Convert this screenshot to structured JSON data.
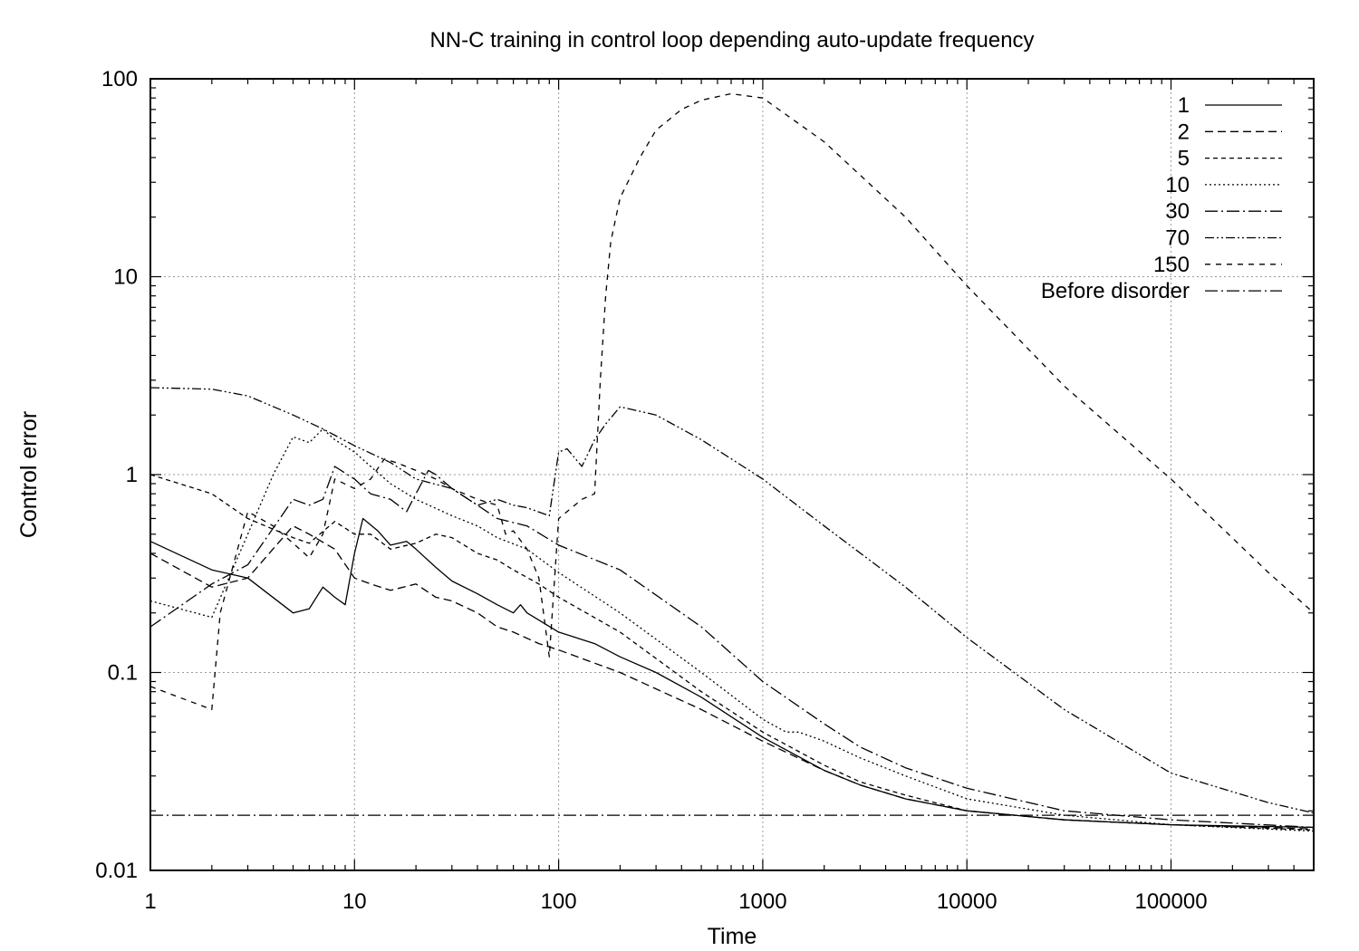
{
  "chart_data": {
    "type": "line",
    "title": "NN-C training in control loop depending auto-update frequency",
    "xlabel": "Time",
    "ylabel": "Control error",
    "xscale": "log",
    "yscale": "log",
    "xlim": [
      1,
      500000
    ],
    "ylim": [
      0.01,
      100
    ],
    "grid": true,
    "legend_position": "top-right",
    "x_ticks": [
      {
        "value": 1,
        "label": "1"
      },
      {
        "value": 10,
        "label": "10"
      },
      {
        "value": 100,
        "label": "100"
      },
      {
        "value": 1000,
        "label": "1000"
      },
      {
        "value": 10000,
        "label": "10000"
      },
      {
        "value": 100000,
        "label": "100000"
      }
    ],
    "y_ticks": [
      {
        "value": 0.01,
        "label": "0.01"
      },
      {
        "value": 0.1,
        "label": "0.1"
      },
      {
        "value": 1,
        "label": "1"
      },
      {
        "value": 10,
        "label": "10"
      },
      {
        "value": 100,
        "label": "100"
      }
    ],
    "series": [
      {
        "name": "1",
        "dash": "",
        "points": [
          [
            1,
            0.46
          ],
          [
            2,
            0.33
          ],
          [
            3,
            0.3
          ],
          [
            5,
            0.2
          ],
          [
            6,
            0.21
          ],
          [
            7,
            0.27
          ],
          [
            8,
            0.24
          ],
          [
            9,
            0.22
          ],
          [
            10,
            0.4
          ],
          [
            11,
            0.6
          ],
          [
            13,
            0.52
          ],
          [
            15,
            0.44
          ],
          [
            18,
            0.46
          ],
          [
            20,
            0.42
          ],
          [
            25,
            0.34
          ],
          [
            30,
            0.29
          ],
          [
            40,
            0.25
          ],
          [
            50,
            0.22
          ],
          [
            60,
            0.2
          ],
          [
            65,
            0.22
          ],
          [
            70,
            0.2
          ],
          [
            100,
            0.16
          ],
          [
            150,
            0.14
          ],
          [
            200,
            0.12
          ],
          [
            300,
            0.1
          ],
          [
            500,
            0.075
          ],
          [
            1000,
            0.047
          ],
          [
            2000,
            0.032
          ],
          [
            3000,
            0.027
          ],
          [
            5000,
            0.023
          ],
          [
            10000,
            0.02
          ],
          [
            30000,
            0.018
          ],
          [
            100000,
            0.017
          ],
          [
            500000,
            0.0165
          ]
        ]
      },
      {
        "name": "2",
        "dash": "9 5",
        "points": [
          [
            1,
            0.4
          ],
          [
            2,
            0.27
          ],
          [
            3,
            0.3
          ],
          [
            5,
            0.55
          ],
          [
            6,
            0.5
          ],
          [
            8,
            0.42
          ],
          [
            10,
            0.3
          ],
          [
            12,
            0.28
          ],
          [
            15,
            0.26
          ],
          [
            20,
            0.28
          ],
          [
            25,
            0.24
          ],
          [
            30,
            0.23
          ],
          [
            40,
            0.2
          ],
          [
            50,
            0.17
          ],
          [
            60,
            0.16
          ],
          [
            80,
            0.14
          ],
          [
            100,
            0.13
          ],
          [
            200,
            0.1
          ],
          [
            500,
            0.065
          ],
          [
            1000,
            0.045
          ],
          [
            2000,
            0.032
          ],
          [
            3000,
            0.027
          ],
          [
            5000,
            0.023
          ],
          [
            10000,
            0.02
          ],
          [
            30000,
            0.018
          ],
          [
            100000,
            0.017
          ],
          [
            500000,
            0.0162
          ]
        ]
      },
      {
        "name": "5",
        "dash": "5 4",
        "points": [
          [
            1,
            1
          ],
          [
            2,
            0.8
          ],
          [
            3,
            0.6
          ],
          [
            5,
            0.48
          ],
          [
            6,
            0.45
          ],
          [
            8,
            0.58
          ],
          [
            10,
            0.5
          ],
          [
            12,
            0.5
          ],
          [
            15,
            0.42
          ],
          [
            20,
            0.45
          ],
          [
            25,
            0.5
          ],
          [
            30,
            0.48
          ],
          [
            40,
            0.4
          ],
          [
            50,
            0.37
          ],
          [
            60,
            0.33
          ],
          [
            80,
            0.28
          ],
          [
            100,
            0.24
          ],
          [
            200,
            0.16
          ],
          [
            500,
            0.08
          ],
          [
            1000,
            0.05
          ],
          [
            2000,
            0.034
          ],
          [
            3000,
            0.028
          ],
          [
            5000,
            0.024
          ],
          [
            10000,
            0.02
          ],
          [
            30000,
            0.018
          ],
          [
            100000,
            0.017
          ],
          [
            500000,
            0.016
          ]
        ]
      },
      {
        "name": "10",
        "dash": "2 3",
        "points": [
          [
            1,
            0.23
          ],
          [
            2,
            0.19
          ],
          [
            3,
            0.5
          ],
          [
            4,
            1
          ],
          [
            5,
            1.55
          ],
          [
            6,
            1.45
          ],
          [
            7,
            1.7
          ],
          [
            8,
            1.5
          ],
          [
            10,
            1.3
          ],
          [
            12,
            1.1
          ],
          [
            15,
            0.9
          ],
          [
            20,
            0.75
          ],
          [
            30,
            0.62
          ],
          [
            40,
            0.55
          ],
          [
            50,
            0.48
          ],
          [
            70,
            0.42
          ],
          [
            100,
            0.32
          ],
          [
            200,
            0.2
          ],
          [
            500,
            0.1
          ],
          [
            1000,
            0.058
          ],
          [
            1300,
            0.05
          ],
          [
            1500,
            0.05
          ],
          [
            2000,
            0.045
          ],
          [
            3000,
            0.037
          ],
          [
            5000,
            0.03
          ],
          [
            10000,
            0.023
          ],
          [
            30000,
            0.019
          ],
          [
            100000,
            0.017
          ],
          [
            500000,
            0.0158
          ]
        ]
      },
      {
        "name": "30",
        "dash": "14 4 2 4",
        "points": [
          [
            1,
            0.17
          ],
          [
            2,
            0.28
          ],
          [
            3,
            0.35
          ],
          [
            5,
            0.75
          ],
          [
            6,
            0.7
          ],
          [
            7,
            0.75
          ],
          [
            8,
            1.1
          ],
          [
            10,
            0.95
          ],
          [
            12,
            0.8
          ],
          [
            15,
            0.75
          ],
          [
            18,
            0.65
          ],
          [
            20,
            0.8
          ],
          [
            23,
            1.05
          ],
          [
            25,
            1
          ],
          [
            30,
            0.85
          ],
          [
            40,
            0.7
          ],
          [
            50,
            0.6
          ],
          [
            70,
            0.55
          ],
          [
            100,
            0.44
          ],
          [
            200,
            0.33
          ],
          [
            500,
            0.17
          ],
          [
            1000,
            0.09
          ],
          [
            2000,
            0.055
          ],
          [
            3000,
            0.042
          ],
          [
            5000,
            0.033
          ],
          [
            10000,
            0.026
          ],
          [
            30000,
            0.02
          ],
          [
            100000,
            0.018
          ],
          [
            500000,
            0.0165
          ]
        ]
      },
      {
        "name": "70",
        "dash": "10 3 2 3 2 3",
        "points": [
          [
            1,
            2.75
          ],
          [
            2,
            2.7
          ],
          [
            3,
            2.5
          ],
          [
            5,
            2
          ],
          [
            7,
            1.7
          ],
          [
            10,
            1.4
          ],
          [
            15,
            1.15
          ],
          [
            20,
            0.95
          ],
          [
            30,
            0.85
          ],
          [
            40,
            0.7
          ],
          [
            50,
            0.75
          ],
          [
            60,
            0.7
          ],
          [
            70,
            0.68
          ],
          [
            90,
            0.62
          ],
          [
            100,
            1.3
          ],
          [
            110,
            1.35
          ],
          [
            130,
            1.1
          ],
          [
            150,
            1.5
          ],
          [
            170,
            1.8
          ],
          [
            200,
            2.2
          ],
          [
            300,
            2
          ],
          [
            500,
            1.5
          ],
          [
            1000,
            0.95
          ],
          [
            2000,
            0.55
          ],
          [
            5000,
            0.27
          ],
          [
            10000,
            0.15
          ],
          [
            30000,
            0.065
          ],
          [
            100000,
            0.031
          ],
          [
            300000,
            0.022
          ],
          [
            500000,
            0.0195
          ]
        ]
      },
      {
        "name": "150",
        "dash": "6 6",
        "points": [
          [
            1,
            0.085
          ],
          [
            2,
            0.065
          ],
          [
            2.2,
            0.2
          ],
          [
            3,
            0.65
          ],
          [
            4,
            0.55
          ],
          [
            5,
            0.45
          ],
          [
            6,
            0.38
          ],
          [
            7,
            0.5
          ],
          [
            8,
            0.95
          ],
          [
            10,
            0.85
          ],
          [
            12,
            0.95
          ],
          [
            14,
            1.2
          ],
          [
            16,
            1.15
          ],
          [
            20,
            1.05
          ],
          [
            25,
            0.95
          ],
          [
            30,
            0.85
          ],
          [
            40,
            0.75
          ],
          [
            50,
            0.7
          ],
          [
            55,
            0.5
          ],
          [
            60,
            0.52
          ],
          [
            70,
            0.42
          ],
          [
            80,
            0.3
          ],
          [
            90,
            0.12
          ],
          [
            100,
            0.6
          ],
          [
            130,
            0.75
          ],
          [
            150,
            0.8
          ],
          [
            160,
            3
          ],
          [
            170,
            8
          ],
          [
            180,
            15
          ],
          [
            200,
            25
          ],
          [
            250,
            40
          ],
          [
            300,
            55
          ],
          [
            400,
            70
          ],
          [
            500,
            78
          ],
          [
            700,
            84
          ],
          [
            1000,
            80
          ],
          [
            2000,
            48
          ],
          [
            5000,
            20
          ],
          [
            10000,
            9
          ],
          [
            30000,
            2.8
          ],
          [
            100000,
            0.95
          ],
          [
            300000,
            0.32
          ],
          [
            500000,
            0.2
          ]
        ]
      },
      {
        "name": "Before disorder",
        "dash": "14 4 2 4",
        "points": [
          [
            1,
            0.019
          ],
          [
            500000,
            0.019
          ]
        ]
      }
    ]
  }
}
